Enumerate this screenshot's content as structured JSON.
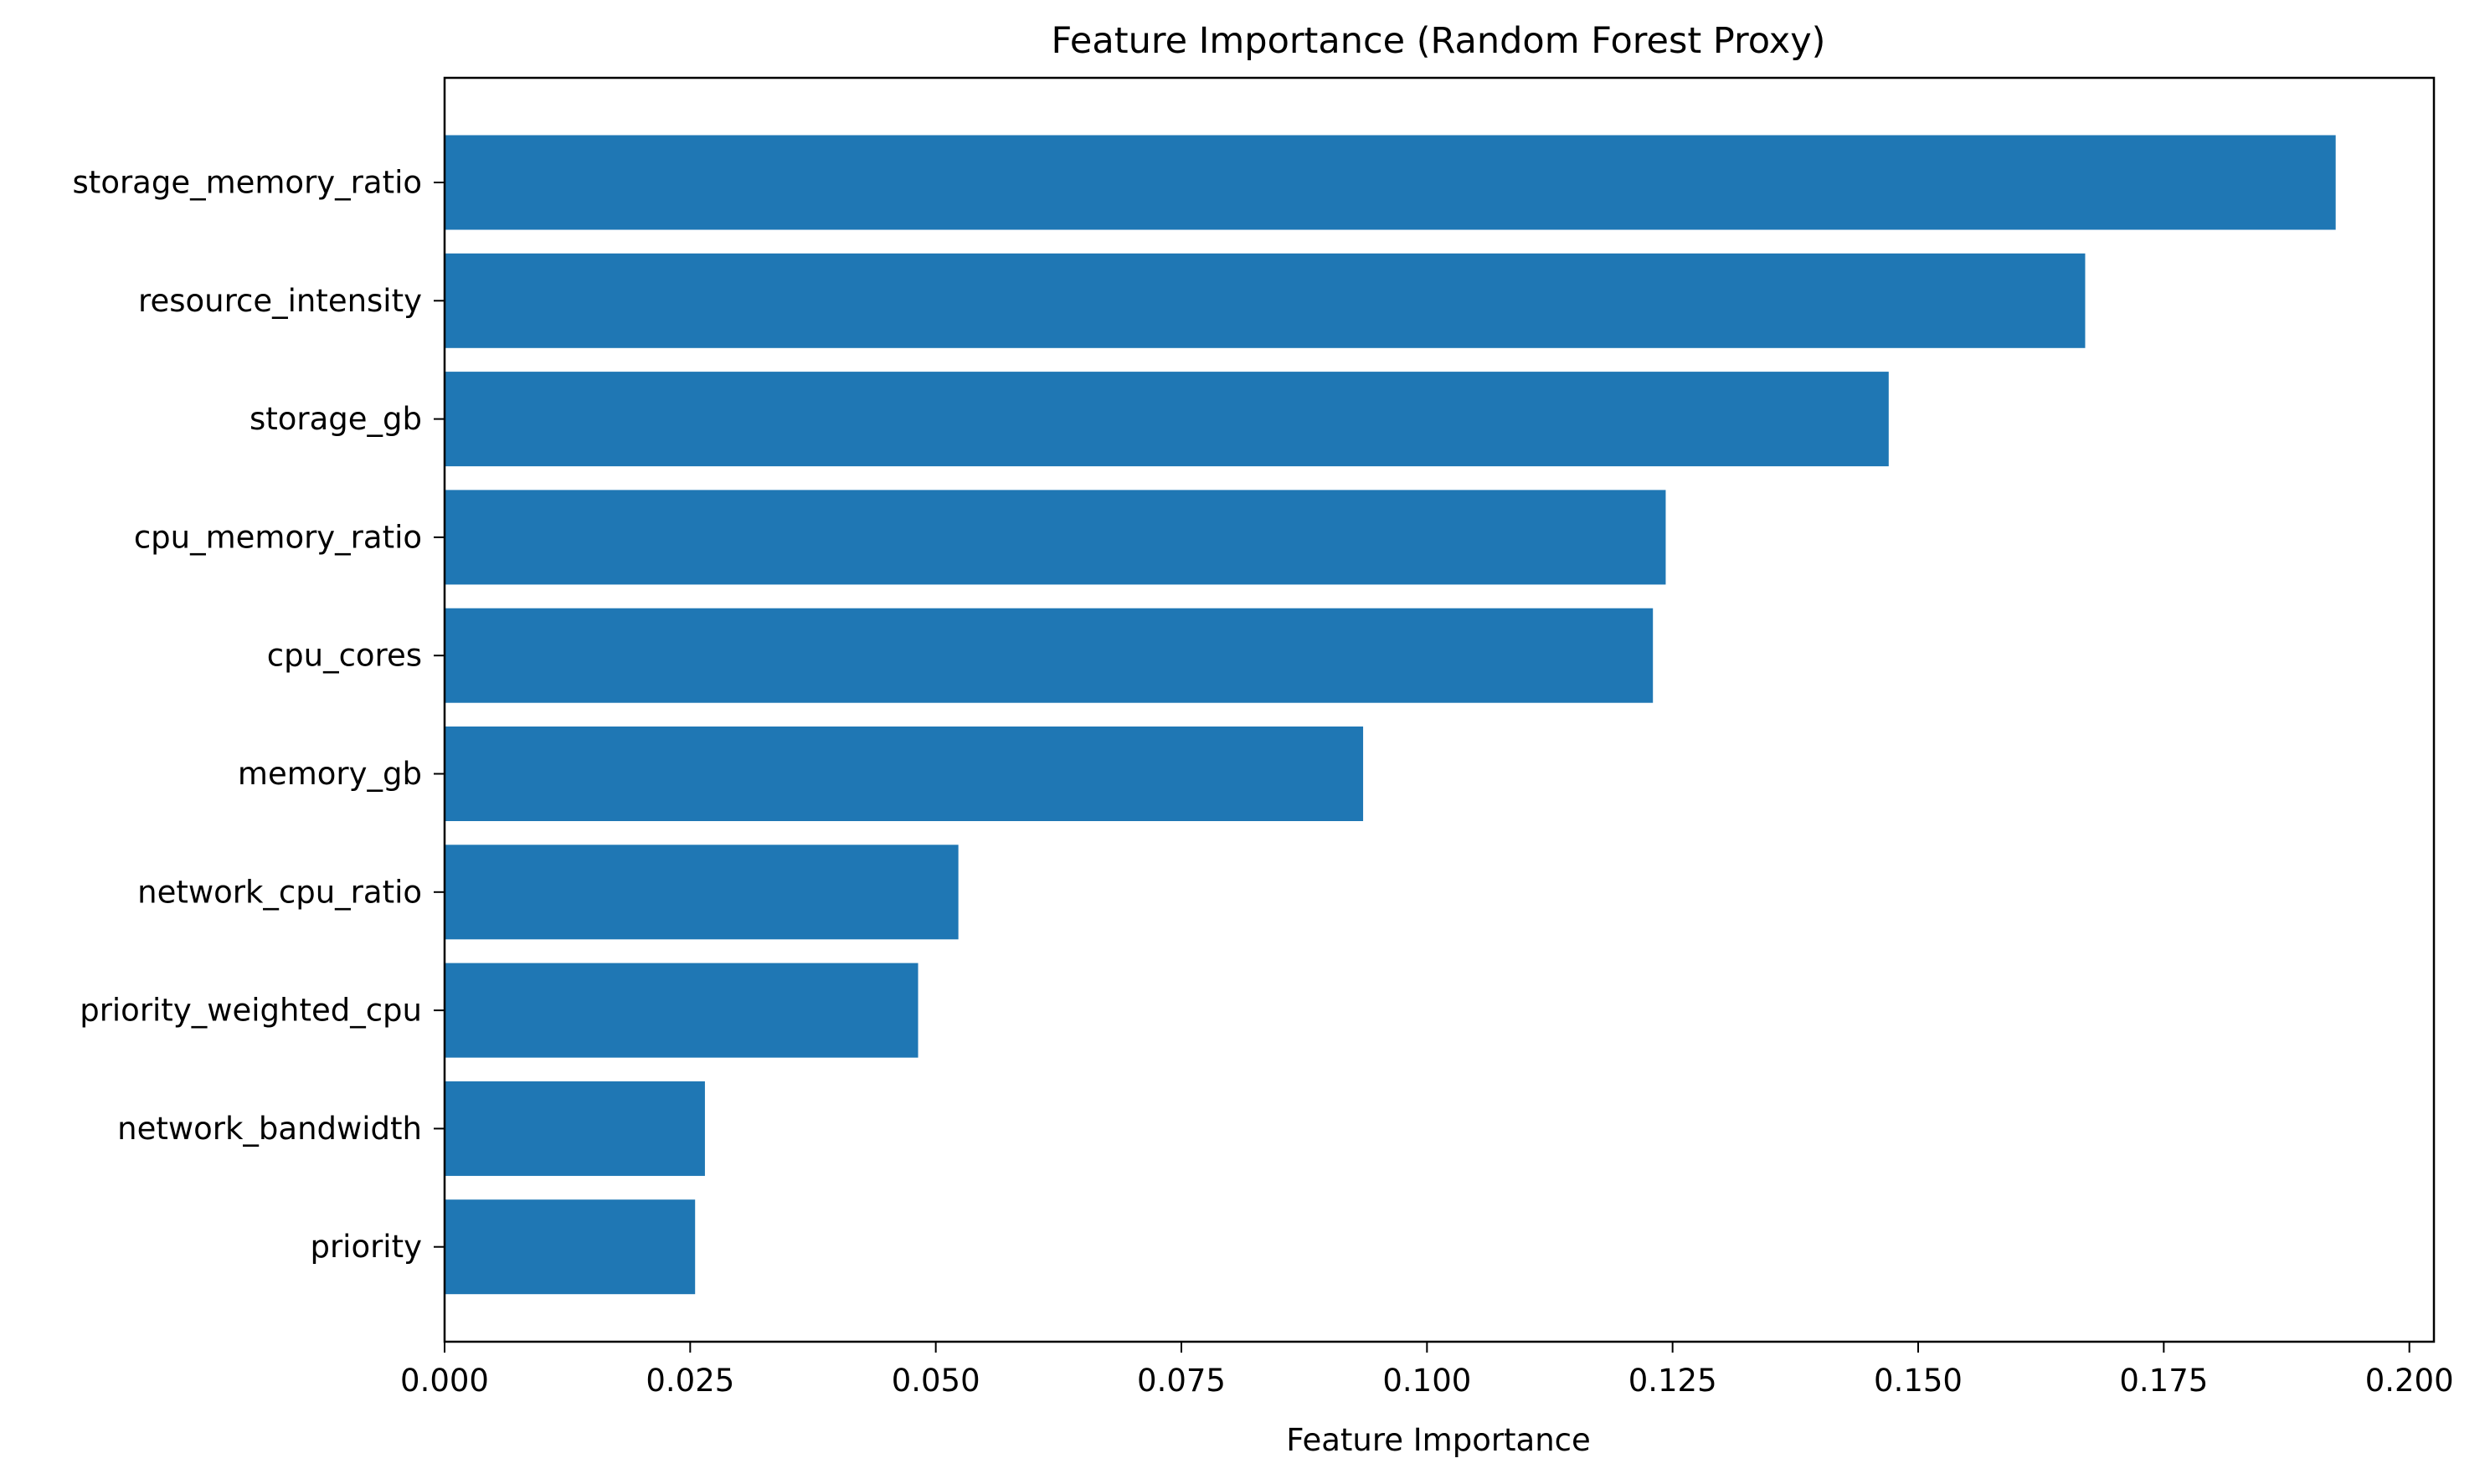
{
  "chart_data": {
    "type": "bar",
    "orientation": "horizontal",
    "title": "Feature Importance (Random Forest Proxy)",
    "xlabel": "Feature Importance",
    "ylabel": "",
    "xlim": [
      0.0,
      0.2025
    ],
    "xticks": [
      0.0,
      0.025,
      0.05,
      0.075,
      0.1,
      0.125,
      0.15,
      0.175,
      0.2
    ],
    "xtick_labels": [
      "0.000",
      "0.025",
      "0.050",
      "0.075",
      "0.100",
      "0.125",
      "0.150",
      "0.175",
      "0.200"
    ],
    "categories": [
      "storage_memory_ratio",
      "resource_intensity",
      "storage_gb",
      "cpu_memory_ratio",
      "cpu_cores",
      "memory_gb",
      "network_cpu_ratio",
      "priority_weighted_cpu",
      "network_bandwidth",
      "priority"
    ],
    "values": [
      0.1925,
      0.167,
      0.147,
      0.1243,
      0.123,
      0.0935,
      0.0523,
      0.0482,
      0.0265,
      0.0255
    ],
    "bar_color": "#1f77b4",
    "grid": false,
    "legend": "none"
  }
}
